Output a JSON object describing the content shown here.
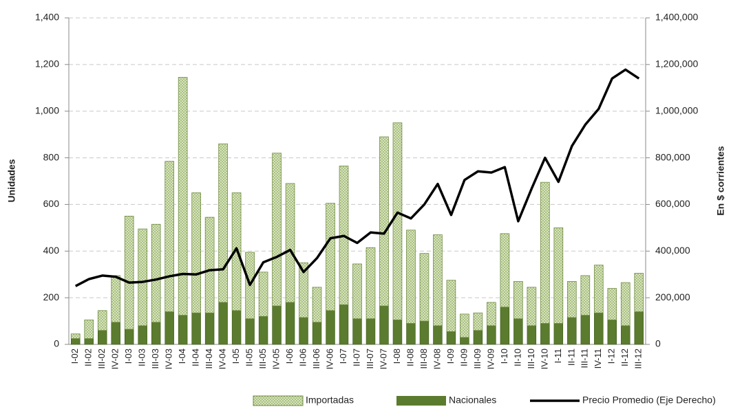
{
  "chart_data": {
    "type": "stacked-bar-line",
    "y_label": "Unidades",
    "y2_label": "En $ corrientes",
    "categories": [
      "I-02",
      "II-02",
      "III-02",
      "IV-02",
      "I-03",
      "II-03",
      "III-03",
      "IV-03",
      "I-04",
      "II-04",
      "III-04",
      "IV-04",
      "I-05",
      "II-05",
      "III-05",
      "IV-05",
      "I-06",
      "II-06",
      "III-06",
      "IV-06",
      "I-07",
      "II-07",
      "III-07",
      "IV-07",
      "I-08",
      "II-08",
      "III-08",
      "IV-08",
      "I-09",
      "II-09",
      "III-09",
      "IV-09",
      "I-10",
      "II-10",
      "III-10",
      "IV-10",
      "I-11",
      "II-11",
      "III-11",
      "IV-11",
      "I-12",
      "II-12",
      "III-12"
    ],
    "series": [
      {
        "name": "Nacionales",
        "color": "#5b7b2e",
        "values": [
          25,
          25,
          60,
          95,
          65,
          80,
          95,
          140,
          125,
          135,
          135,
          180,
          145,
          110,
          120,
          165,
          180,
          115,
          95,
          145,
          170,
          110,
          110,
          165,
          105,
          90,
          100,
          80,
          55,
          30,
          60,
          80,
          160,
          110,
          80,
          90,
          90,
          115,
          125,
          135,
          105,
          80,
          140
        ]
      },
      {
        "name": "Importadas",
        "color": "#d7e4bd",
        "values": [
          20,
          80,
          85,
          200,
          485,
          415,
          420,
          645,
          1020,
          515,
          410,
          680,
          505,
          285,
          190,
          655,
          510,
          235,
          150,
          460,
          595,
          235,
          305,
          725,
          845,
          400,
          290,
          390,
          220,
          100,
          75,
          100,
          315,
          160,
          165,
          605,
          410,
          155,
          170,
          205,
          135,
          185,
          165
        ]
      },
      {
        "name": "Precio Promedio (Eje Derecho)",
        "color": "#000000",
        "axis": "y2",
        "values": [
          250000,
          280000,
          295000,
          290000,
          265000,
          268000,
          278000,
          292000,
          302000,
          300000,
          318000,
          322000,
          412000,
          255000,
          352000,
          375000,
          405000,
          310000,
          370000,
          455000,
          465000,
          435000,
          480000,
          475000,
          565000,
          540000,
          600000,
          688000,
          555000,
          705000,
          742000,
          737000,
          760000,
          528000,
          668000,
          800000,
          697000,
          850000,
          942000,
          1010000,
          1140000,
          1178000,
          1140000
        ]
      }
    ],
    "ylim": [
      0,
      1400
    ],
    "yticks": [
      0,
      200,
      400,
      600,
      800,
      {
        "value": 1000,
        "label": "1,000"
      },
      {
        "value": 1200,
        "label": "1,200"
      },
      {
        "value": 1400,
        "label": "1,400"
      }
    ],
    "y2lim": [
      0,
      1400000
    ],
    "y2ticks": [
      0,
      {
        "value": 200000,
        "label": "200,000"
      },
      {
        "value": 400000,
        "label": "400,000"
      },
      {
        "value": 600000,
        "label": "600,000"
      },
      {
        "value": 800000,
        "label": "800,000"
      },
      {
        "value": 1000000,
        "label": "1,000,000"
      },
      {
        "value": 1200000,
        "label": "1,200,000"
      },
      {
        "value": 1400000,
        "label": "1,400,000"
      }
    ],
    "grid": true,
    "legend": "bottom"
  }
}
